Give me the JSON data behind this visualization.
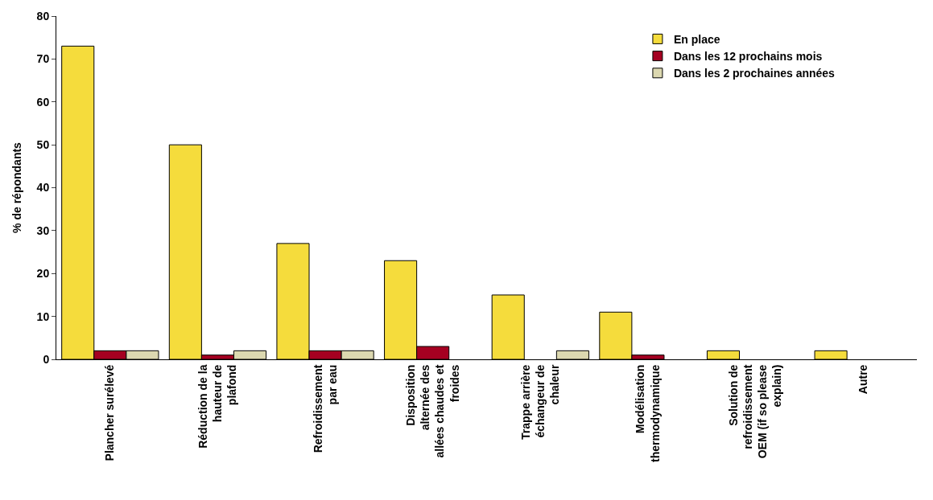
{
  "chart_data": {
    "type": "bar",
    "ylabel": "% de répondants",
    "categories": [
      "Plancher surélevé",
      "Réduction de la\nhauteur de\nplafond",
      "Refroidissement\npar eau",
      "Disposition\nalternée des\nallées chaudes et\nfroides",
      "Trappe arrière\néchangeur de\nchaleur",
      "Modélisation\nthermodynamique",
      "Solution de\nrefroidissement\nOEM (if so please\nexplain)",
      "Autre"
    ],
    "series": [
      {
        "name": "En place",
        "color": "#f5dc3c",
        "values": [
          73,
          50,
          27,
          23,
          15,
          11,
          2,
          2
        ]
      },
      {
        "name": "Dans les 12 prochains mois",
        "color": "#a50021",
        "values": [
          2,
          1,
          2,
          3,
          null,
          1,
          null,
          null
        ]
      },
      {
        "name": "Dans les 2 prochaines années",
        "color": "#dcd8b0",
        "values": [
          2,
          2,
          2,
          null,
          2,
          null,
          null,
          null
        ]
      }
    ],
    "ylim": [
      0,
      80
    ],
    "yticks": [
      0,
      10,
      20,
      30,
      40,
      50,
      60,
      70,
      80
    ],
    "legend": "top right"
  }
}
